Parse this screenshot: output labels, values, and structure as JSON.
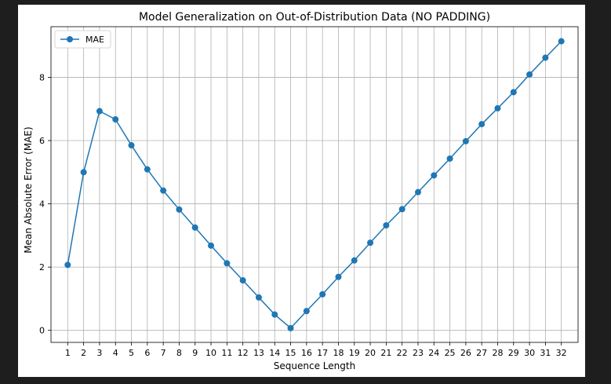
{
  "chart_data": {
    "type": "line",
    "title": "Model Generalization on Out-of-Distribution Data (NO PADDING)",
    "xlabel": "Sequence Length",
    "ylabel": "Mean Absolute Error (MAE)",
    "x": [
      1,
      2,
      3,
      4,
      5,
      6,
      7,
      8,
      9,
      10,
      11,
      12,
      13,
      14,
      15,
      16,
      17,
      18,
      19,
      20,
      21,
      22,
      23,
      24,
      25,
      26,
      27,
      28,
      29,
      30,
      31,
      32
    ],
    "series": [
      {
        "name": "MAE",
        "color": "#1f77b4",
        "marker": "circle",
        "values": [
          2.07,
          5.0,
          6.93,
          6.67,
          5.85,
          5.09,
          4.42,
          3.82,
          3.25,
          2.68,
          2.12,
          1.58,
          1.04,
          0.5,
          0.07,
          0.61,
          1.14,
          1.69,
          2.21,
          2.77,
          3.32,
          3.83,
          4.37,
          4.9,
          5.43,
          5.98,
          6.52,
          7.02,
          7.53,
          8.09,
          8.62,
          9.14
        ]
      }
    ],
    "xlim": [
      -0.05,
      33.05
    ],
    "ylim": [
      -0.38,
      9.6
    ],
    "yticks": [
      0,
      2,
      4,
      6,
      8
    ],
    "xticks": [
      1,
      2,
      3,
      4,
      5,
      6,
      7,
      8,
      9,
      10,
      11,
      12,
      13,
      14,
      15,
      16,
      17,
      18,
      19,
      20,
      21,
      22,
      23,
      24,
      25,
      26,
      27,
      28,
      29,
      30,
      31,
      32
    ],
    "grid": true,
    "legend": "upper-left"
  }
}
